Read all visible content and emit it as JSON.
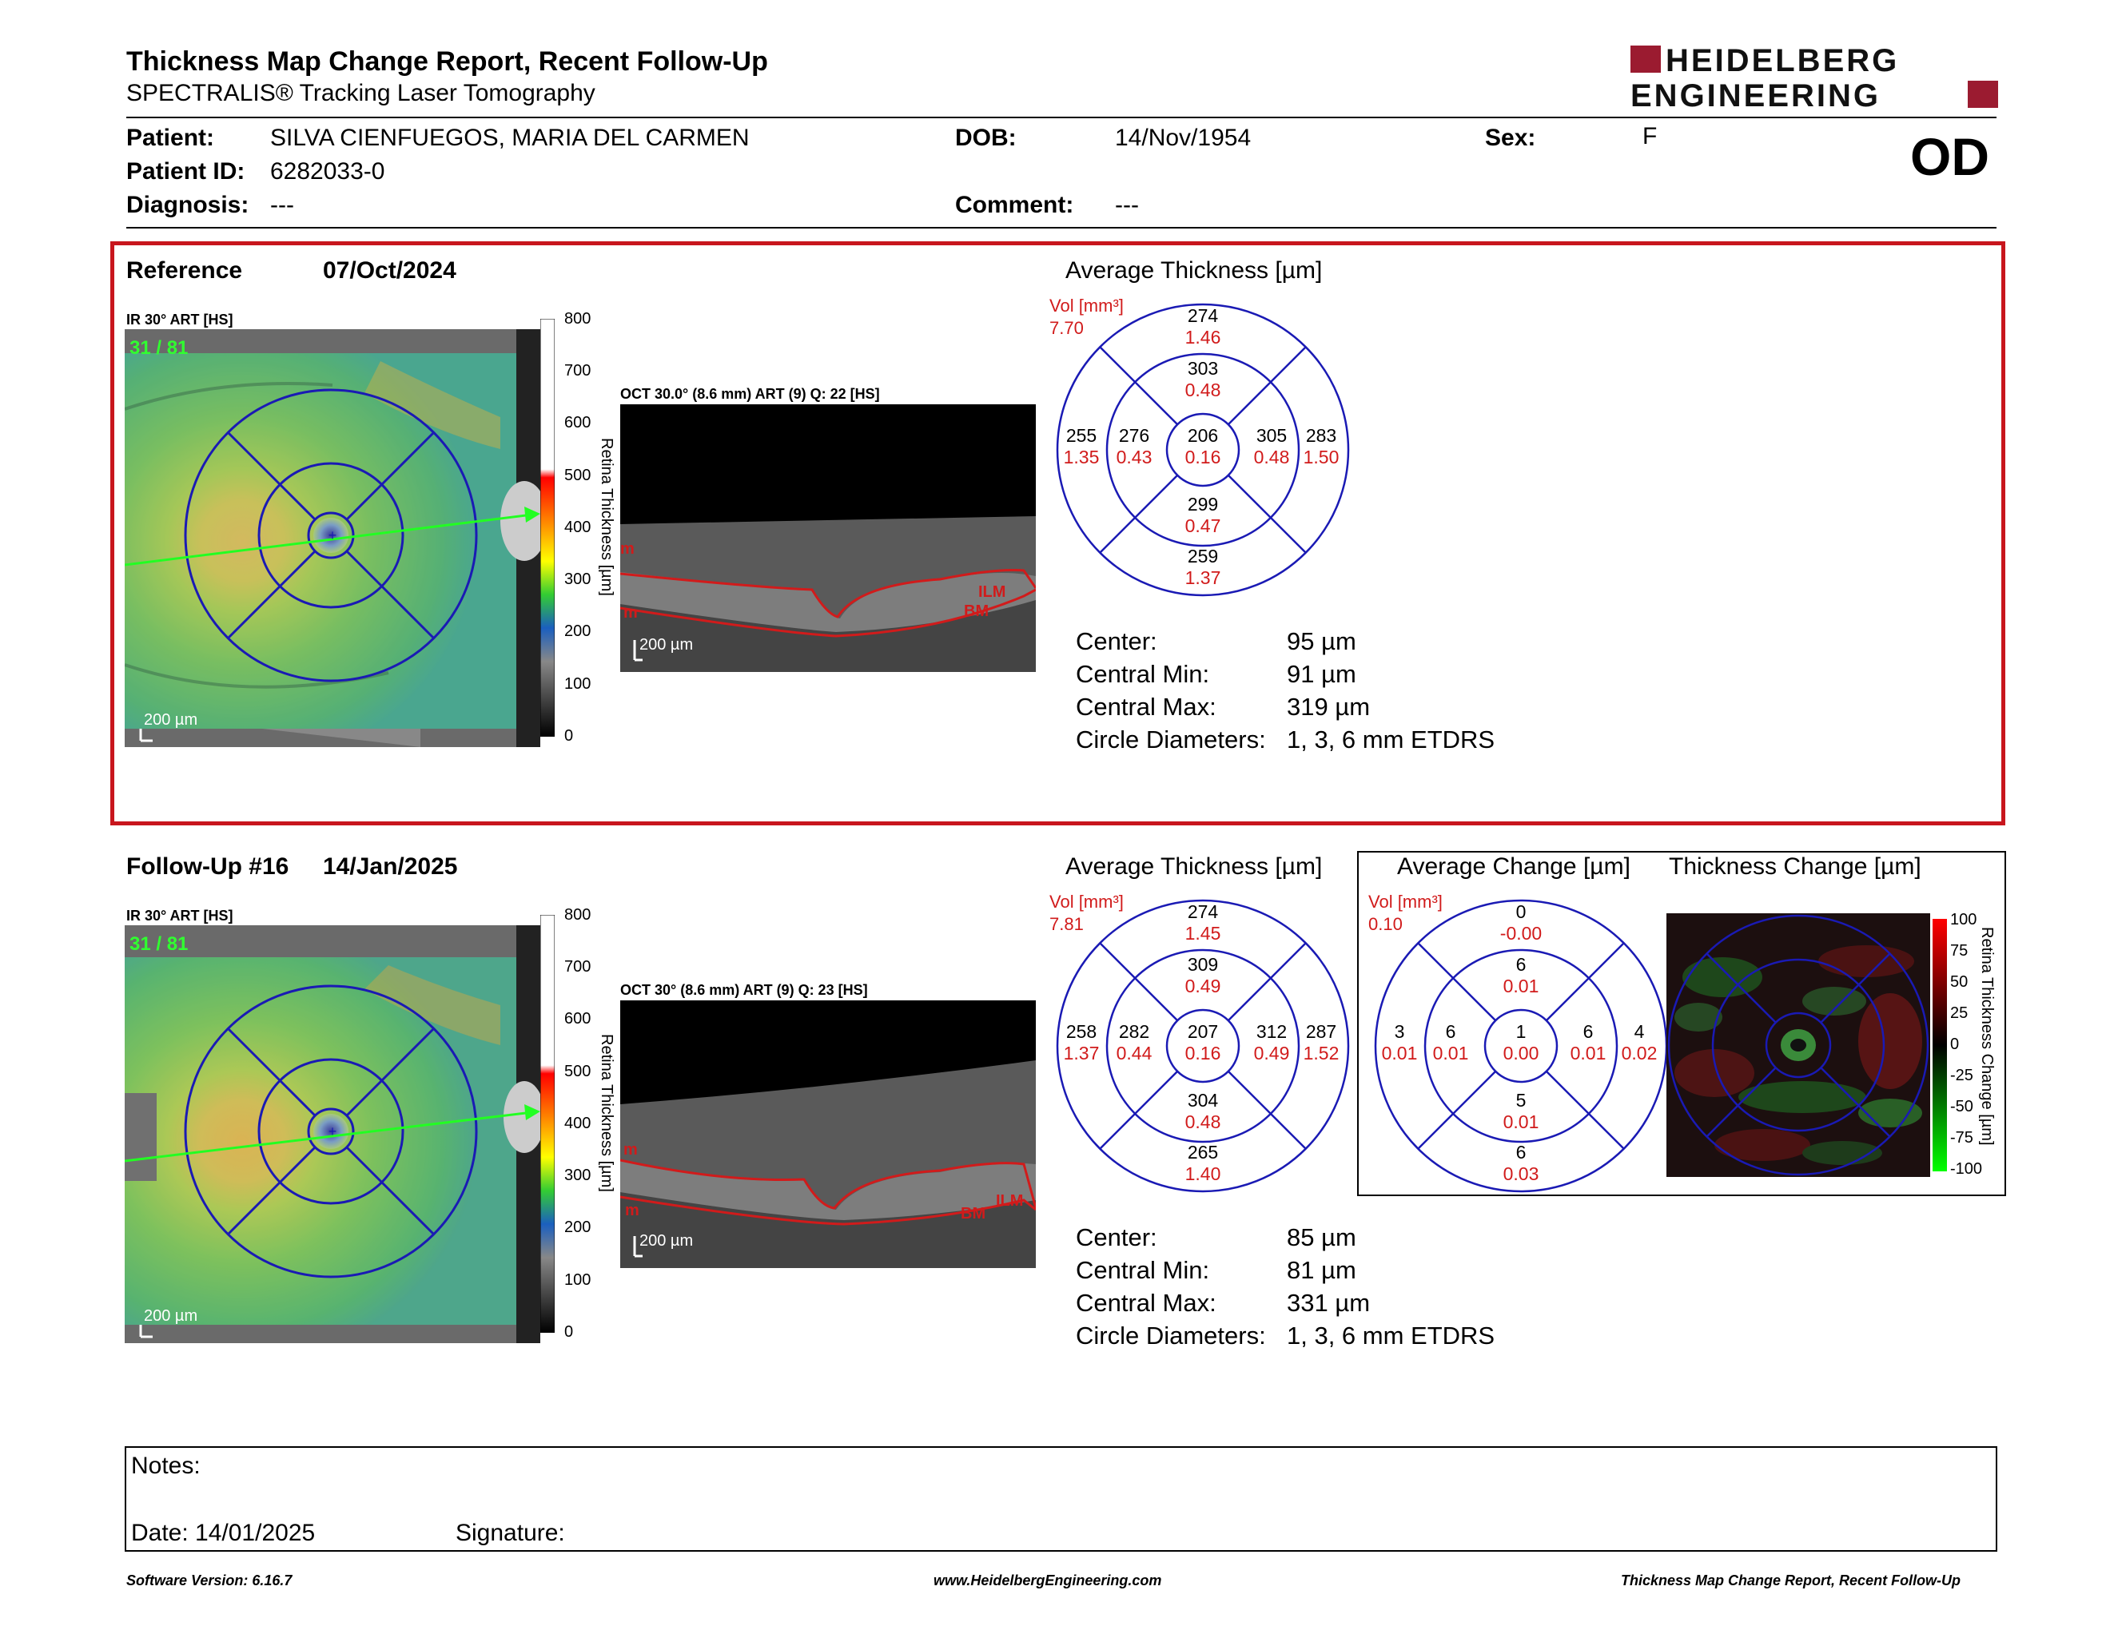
{
  "header": {
    "title": "Thickness Map Change Report, Recent Follow-Up",
    "subtitle": "SPECTRALIS® Tracking Laser Tomography",
    "logo_line1": "HEIDELBERG",
    "logo_line2": "ENGINEERING",
    "eye": "OD"
  },
  "patient": {
    "patient_label": "Patient:",
    "patient_name": "SILVA CIENFUEGOS, MARIA DEL CARMEN",
    "id_label": "Patient ID:",
    "id": "6282033-0",
    "diagnosis_label": "Diagnosis:",
    "diagnosis": "---",
    "dob_label": "DOB:",
    "dob": "14/Nov/1954",
    "comment_label": "Comment:",
    "comment": "---",
    "sex_label": "Sex:",
    "sex": "F"
  },
  "reference": {
    "label": "Reference",
    "date": "07/Oct/2024",
    "ir_label": "IR 30° ART [HS]",
    "counter": "31 / 81",
    "scale_bar": "200 µm",
    "oct_label": "OCT 30.0° (8.6 mm) ART (9) Q: 22 [HS]",
    "oct_scale": "200 µm",
    "avg_title": "Average Thickness [µm]",
    "vol_label": "Vol [mm³]",
    "vol_total": "7.70",
    "sectors": {
      "top_outer": [
        "274",
        "1.46"
      ],
      "top_inner": [
        "303",
        "0.48"
      ],
      "left_outer": [
        "255",
        "1.35"
      ],
      "left_inner": [
        "276",
        "0.43"
      ],
      "center": [
        "206",
        "0.16"
      ],
      "right_inner": [
        "305",
        "0.48"
      ],
      "right_outer": [
        "283",
        "1.50"
      ],
      "bottom_inner": [
        "299",
        "0.47"
      ],
      "bottom_outer": [
        "259",
        "1.37"
      ]
    },
    "stats": {
      "center_label": "Center:",
      "center": "95 µm",
      "min_label": "Central Min:",
      "min": "91 µm",
      "max_label": "Central Max:",
      "max": "319 µm",
      "diam_label": "Circle Diameters:",
      "diam": "1, 3, 6 mm ETDRS"
    }
  },
  "followup": {
    "label": "Follow-Up #16",
    "date": "14/Jan/2025",
    "ir_label": "IR 30° ART [HS]",
    "counter": "31 / 81",
    "scale_bar": "200 µm",
    "oct_label": "OCT 30° (8.6 mm) ART (9) Q: 23 [HS]",
    "oct_scale": "200 µm",
    "avg_title": "Average Thickness [µm]",
    "vol_label": "Vol [mm³]",
    "vol_total": "7.81",
    "sectors": {
      "top_outer": [
        "274",
        "1.45"
      ],
      "top_inner": [
        "309",
        "0.49"
      ],
      "left_outer": [
        "258",
        "1.37"
      ],
      "left_inner": [
        "282",
        "0.44"
      ],
      "center": [
        "207",
        "0.16"
      ],
      "right_inner": [
        "312",
        "0.49"
      ],
      "right_outer": [
        "287",
        "1.52"
      ],
      "bottom_inner": [
        "304",
        "0.48"
      ],
      "bottom_outer": [
        "265",
        "1.40"
      ]
    },
    "change_title": "Average Change [µm]",
    "change_vol_label": "Vol [mm³]",
    "change_vol_total": "0.10",
    "change_sectors": {
      "top_outer": [
        "0",
        "-0.00"
      ],
      "top_inner": [
        "6",
        "0.01"
      ],
      "left_outer": [
        "3",
        "0.01"
      ],
      "left_inner": [
        "6",
        "0.01"
      ],
      "center": [
        "1",
        "0.00"
      ],
      "right_inner": [
        "6",
        "0.01"
      ],
      "right_outer": [
        "4",
        "0.02"
      ],
      "bottom_inner": [
        "5",
        "0.01"
      ],
      "bottom_outer": [
        "6",
        "0.03"
      ]
    },
    "thick_change_title": "Thickness Change [µm]",
    "thick_change_axis": "Retina Thickness Change [µm]",
    "thick_change_ticks": [
      "100",
      "75",
      "50",
      "25",
      "0",
      "-25",
      "-50",
      "-75",
      "-100"
    ],
    "stats": {
      "center_label": "Center:",
      "center": "85 µm",
      "min_label": "Central Min:",
      "min": "81 µm",
      "max_label": "Central Max:",
      "max": "331 µm",
      "diam_label": "Circle Diameters:",
      "diam": "1, 3, 6 mm ETDRS"
    }
  },
  "thickness_scale": {
    "axis": "Retina Thickness [µm]",
    "ticks": [
      "800",
      "700",
      "600",
      "500",
      "400",
      "300",
      "200",
      "100",
      "0"
    ]
  },
  "oct_layers": {
    "ilm": "ILM",
    "bm": "BM",
    "m": "m"
  },
  "notes": {
    "notes_label": "Notes:",
    "date_label": "Date: 14/01/2025",
    "signature_label": "Signature:"
  },
  "footer": {
    "software": "Software Version: 6.16.7",
    "website": "www.HeidelbergEngineering.com",
    "report": "Thickness Map Change Report, Recent Follow-Up"
  },
  "colors": {
    "accent_red": "#c8161d",
    "etdrs_blue": "#1a1ab4",
    "value_red": "#d11b1b"
  }
}
